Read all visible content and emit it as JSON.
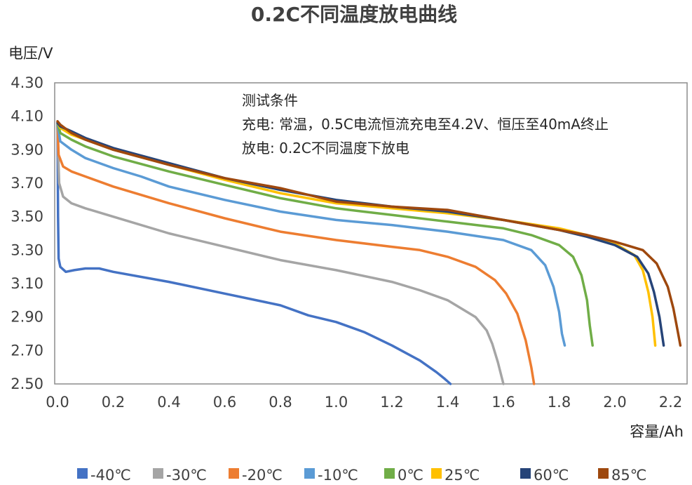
{
  "chart_data": {
    "type": "line",
    "title": "0.2C不同温度放电曲线",
    "ylabel": "电压/V",
    "xlabel": "容量/Ah",
    "xlim": [
      0.0,
      2.3
    ],
    "ylim": [
      2.5,
      4.3
    ],
    "xticks": [
      0.0,
      0.2,
      0.4,
      0.6,
      0.8,
      1.0,
      1.2,
      1.4,
      1.6,
      1.8,
      2.0,
      2.2
    ],
    "xtick_labels": [
      "0.0",
      "0.2",
      "0.4",
      "0.6",
      "0.8",
      "1.0",
      "1.2",
      "1.4",
      "1.6",
      "1.8",
      "2.0",
      "2.2"
    ],
    "yticks": [
      2.5,
      2.7,
      2.9,
      3.1,
      3.3,
      3.5,
      3.7,
      3.9,
      4.1,
      4.3
    ],
    "ytick_labels": [
      "2.50",
      "2.70",
      "2.90",
      "3.10",
      "3.30",
      "3.50",
      "3.70",
      "3.90",
      "4.10",
      "4.30"
    ],
    "grid": false,
    "legend_position": "bottom",
    "annotations": [
      "测试条件",
      "充电: 常温，0.5C电流恒流充电至4.2V、恒压至40mA终止",
      "放电: 0.2C不同温度下放电"
    ],
    "series": [
      {
        "name": "-40℃",
        "color": "#4472C4",
        "points": [
          [
            0,
            4.05
          ],
          [
            0.002,
            3.5
          ],
          [
            0.004,
            3.25
          ],
          [
            0.01,
            3.2
          ],
          [
            0.03,
            3.17
          ],
          [
            0.06,
            3.18
          ],
          [
            0.1,
            3.19
          ],
          [
            0.15,
            3.19
          ],
          [
            0.2,
            3.17
          ],
          [
            0.4,
            3.11
          ],
          [
            0.6,
            3.04
          ],
          [
            0.8,
            2.97
          ],
          [
            0.9,
            2.91
          ],
          [
            1.0,
            2.87
          ],
          [
            1.1,
            2.81
          ],
          [
            1.2,
            2.73
          ],
          [
            1.3,
            2.64
          ],
          [
            1.36,
            2.57
          ],
          [
            1.39,
            2.53
          ],
          [
            1.41,
            2.5
          ]
        ]
      },
      {
        "name": "-30℃",
        "color": "#A5A5A5",
        "points": [
          [
            0,
            4.05
          ],
          [
            0.003,
            3.85
          ],
          [
            0.006,
            3.7
          ],
          [
            0.02,
            3.62
          ],
          [
            0.05,
            3.58
          ],
          [
            0.1,
            3.55
          ],
          [
            0.2,
            3.5
          ],
          [
            0.4,
            3.4
          ],
          [
            0.6,
            3.32
          ],
          [
            0.8,
            3.24
          ],
          [
            1.0,
            3.18
          ],
          [
            1.2,
            3.11
          ],
          [
            1.3,
            3.06
          ],
          [
            1.4,
            3.0
          ],
          [
            1.5,
            2.9
          ],
          [
            1.54,
            2.82
          ],
          [
            1.56,
            2.74
          ],
          [
            1.58,
            2.63
          ],
          [
            1.6,
            2.5
          ]
        ]
      },
      {
        "name": "-20℃",
        "color": "#ED7D31",
        "points": [
          [
            0,
            4.05
          ],
          [
            0.004,
            3.87
          ],
          [
            0.02,
            3.8
          ],
          [
            0.05,
            3.77
          ],
          [
            0.1,
            3.74
          ],
          [
            0.2,
            3.68
          ],
          [
            0.4,
            3.58
          ],
          [
            0.6,
            3.49
          ],
          [
            0.8,
            3.41
          ],
          [
            1.0,
            3.36
          ],
          [
            1.2,
            3.32
          ],
          [
            1.3,
            3.3
          ],
          [
            1.4,
            3.26
          ],
          [
            1.5,
            3.2
          ],
          [
            1.57,
            3.12
          ],
          [
            1.61,
            3.04
          ],
          [
            1.65,
            2.92
          ],
          [
            1.68,
            2.76
          ],
          [
            1.7,
            2.6
          ],
          [
            1.71,
            2.5
          ]
        ]
      },
      {
        "name": "-10℃",
        "color": "#5B9BD5",
        "points": [
          [
            0,
            4.05
          ],
          [
            0.01,
            3.95
          ],
          [
            0.05,
            3.9
          ],
          [
            0.1,
            3.85
          ],
          [
            0.2,
            3.79
          ],
          [
            0.3,
            3.74
          ],
          [
            0.4,
            3.68
          ],
          [
            0.6,
            3.6
          ],
          [
            0.8,
            3.53
          ],
          [
            1.0,
            3.48
          ],
          [
            1.2,
            3.45
          ],
          [
            1.4,
            3.41
          ],
          [
            1.6,
            3.36
          ],
          [
            1.7,
            3.3
          ],
          [
            1.75,
            3.21
          ],
          [
            1.78,
            3.08
          ],
          [
            1.8,
            2.93
          ],
          [
            1.81,
            2.8
          ],
          [
            1.82,
            2.73
          ]
        ]
      },
      {
        "name": "0℃",
        "color": "#70AD47",
        "points": [
          [
            0,
            4.06
          ],
          [
            0.01,
            4.0
          ],
          [
            0.05,
            3.96
          ],
          [
            0.1,
            3.92
          ],
          [
            0.2,
            3.86
          ],
          [
            0.4,
            3.77
          ],
          [
            0.6,
            3.69
          ],
          [
            0.8,
            3.61
          ],
          [
            1.0,
            3.55
          ],
          [
            1.2,
            3.51
          ],
          [
            1.4,
            3.47
          ],
          [
            1.6,
            3.43
          ],
          [
            1.7,
            3.39
          ],
          [
            1.8,
            3.33
          ],
          [
            1.85,
            3.26
          ],
          [
            1.88,
            3.15
          ],
          [
            1.9,
            3.0
          ],
          [
            1.91,
            2.85
          ],
          [
            1.92,
            2.73
          ]
        ]
      },
      {
        "name": "25℃",
        "color": "#FFC000",
        "points": [
          [
            0,
            4.06
          ],
          [
            0.01,
            4.03
          ],
          [
            0.05,
            3.99
          ],
          [
            0.1,
            3.96
          ],
          [
            0.2,
            3.9
          ],
          [
            0.4,
            3.81
          ],
          [
            0.6,
            3.72
          ],
          [
            0.8,
            3.64
          ],
          [
            1.0,
            3.58
          ],
          [
            1.2,
            3.55
          ],
          [
            1.4,
            3.52
          ],
          [
            1.6,
            3.48
          ],
          [
            1.8,
            3.43
          ],
          [
            1.9,
            3.39
          ],
          [
            2.0,
            3.34
          ],
          [
            2.07,
            3.27
          ],
          [
            2.1,
            3.18
          ],
          [
            2.12,
            3.05
          ],
          [
            2.135,
            2.9
          ],
          [
            2.145,
            2.73
          ]
        ]
      },
      {
        "name": "60℃",
        "color": "#264478",
        "points": [
          [
            0,
            4.06
          ],
          [
            0.01,
            4.04
          ],
          [
            0.05,
            4.01
          ],
          [
            0.1,
            3.97
          ],
          [
            0.2,
            3.91
          ],
          [
            0.4,
            3.82
          ],
          [
            0.6,
            3.73
          ],
          [
            0.8,
            3.66
          ],
          [
            1.0,
            3.6
          ],
          [
            1.2,
            3.56
          ],
          [
            1.4,
            3.53
          ],
          [
            1.6,
            3.48
          ],
          [
            1.8,
            3.42
          ],
          [
            1.9,
            3.38
          ],
          [
            2.0,
            3.33
          ],
          [
            2.08,
            3.26
          ],
          [
            2.12,
            3.16
          ],
          [
            2.14,
            3.05
          ],
          [
            2.16,
            2.9
          ],
          [
            2.175,
            2.73
          ]
        ]
      },
      {
        "name": "85℃",
        "color": "#9E480E",
        "points": [
          [
            0,
            4.07
          ],
          [
            0.01,
            4.05
          ],
          [
            0.05,
            4.0
          ],
          [
            0.1,
            3.96
          ],
          [
            0.2,
            3.9
          ],
          [
            0.4,
            3.81
          ],
          [
            0.6,
            3.73
          ],
          [
            0.8,
            3.67
          ],
          [
            1.0,
            3.59
          ],
          [
            1.2,
            3.56
          ],
          [
            1.4,
            3.54
          ],
          [
            1.5,
            3.51
          ],
          [
            1.6,
            3.48
          ],
          [
            1.8,
            3.42
          ],
          [
            1.9,
            3.39
          ],
          [
            2.0,
            3.35
          ],
          [
            2.1,
            3.3
          ],
          [
            2.15,
            3.22
          ],
          [
            2.19,
            3.08
          ],
          [
            2.21,
            2.95
          ],
          [
            2.225,
            2.82
          ],
          [
            2.235,
            2.73
          ]
        ]
      }
    ]
  }
}
